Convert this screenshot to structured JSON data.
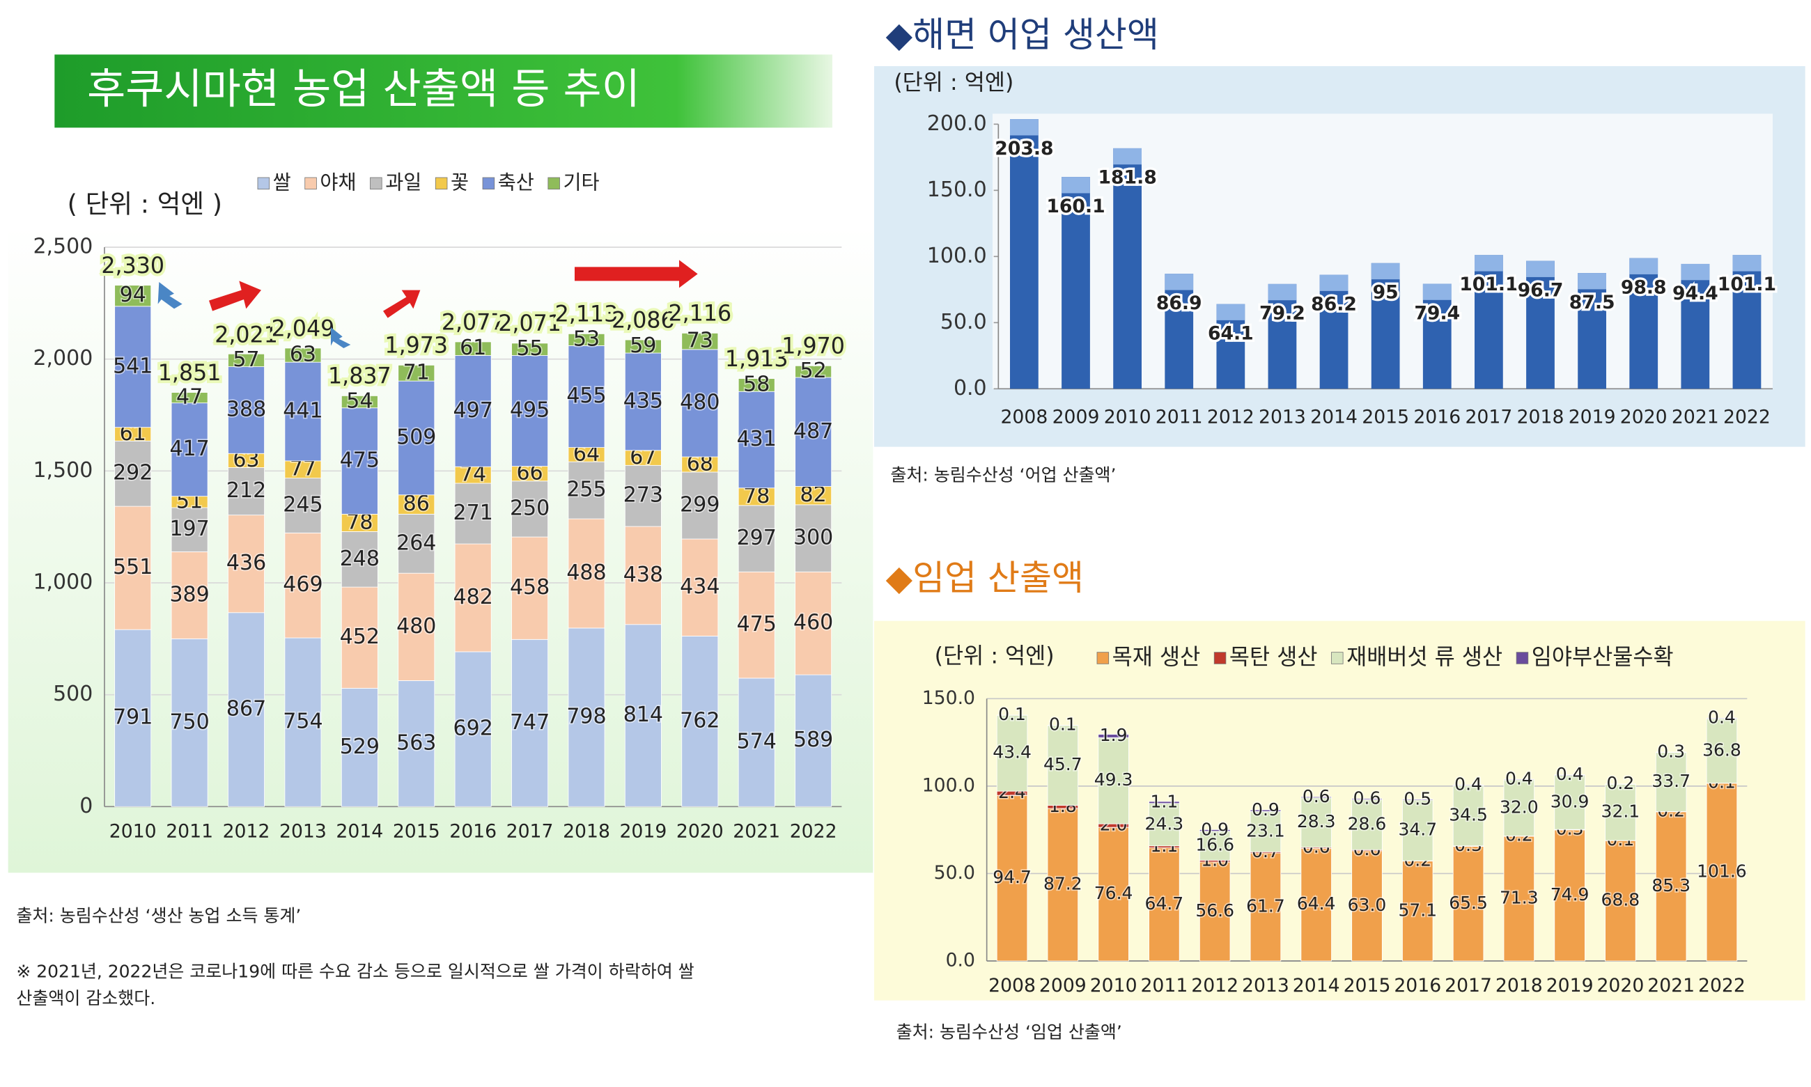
{
  "chart_data": [
    {
      "type": "stacked_bar",
      "title": "후쿠시마현 농업 산출액 등 추이",
      "unit": "( 단위 : 억엔 )",
      "categories": [
        "2010",
        "2011",
        "2012",
        "2013",
        "2014",
        "2015",
        "2016",
        "2017",
        "2018",
        "2019",
        "2020",
        "2021",
        "2022"
      ],
      "series": [
        {
          "name": "쌀",
          "color": "#b4c7e7",
          "values": [
            791,
            750,
            867,
            754,
            529,
            563,
            692,
            747,
            798,
            814,
            762,
            574,
            589
          ]
        },
        {
          "name": "야채",
          "color": "#f8cbad",
          "values": [
            551,
            389,
            436,
            469,
            452,
            480,
            482,
            458,
            488,
            438,
            434,
            475,
            460
          ]
        },
        {
          "name": "과일",
          "color": "#bfbfbf",
          "values": [
            292,
            197,
            212,
            245,
            248,
            264,
            271,
            250,
            255,
            273,
            299,
            297,
            300
          ]
        },
        {
          "name": "꽃",
          "color": "#f2c94c",
          "values": [
            61,
            51,
            63,
            77,
            78,
            86,
            74,
            66,
            64,
            67,
            68,
            78,
            82
          ]
        },
        {
          "name": "축산",
          "color": "#7893d8",
          "values": [
            541,
            417,
            388,
            441,
            475,
            509,
            497,
            495,
            455,
            435,
            480,
            431,
            487
          ]
        },
        {
          "name": "기타",
          "color": "#8fbc5a",
          "values": [
            94,
            47,
            57,
            63,
            54,
            71,
            61,
            55,
            53,
            59,
            73,
            58,
            52
          ]
        }
      ],
      "totals": [
        2330,
        1851,
        2021,
        2049,
        1837,
        1973,
        2077,
        2071,
        2113,
        2086,
        2116,
        1913,
        1970
      ],
      "totals_labels": [
        "2,330",
        "1,851",
        "2,021",
        "2,049",
        "1,837",
        "1,973",
        "2,077",
        "2,071",
        "2,113",
        "2,086",
        "2,116",
        "1,913",
        "1,970"
      ],
      "ylim": [
        0,
        2500
      ],
      "yticks": [
        0,
        500,
        {
          "value": 1000,
          "label": "1,000"
        },
        {
          "value": 1500,
          "label": "1,500"
        },
        {
          "value": 2000,
          "label": "2,000"
        },
        {
          "value": 2500,
          "label": "2,500"
        }
      ],
      "grid": true,
      "source": "출처: 농림수산성 ‘생산 농업 소득 통계’",
      "note": [
        "※ 2021년, 2022년은 코로나19에 따른 수요 감소 등으로 일시적으로 쌀 가격이 하락하여 쌀",
        "산출액이 감소했다."
      ]
    },
    {
      "type": "bar",
      "title": "◆해면 어업 생산액",
      "unit": "(단위 : 억엔)",
      "categories": [
        "2008",
        "2009",
        "2010",
        "2011",
        "2012",
        "2013",
        "2014",
        "2015",
        "2016",
        "2017",
        "2018",
        "2019",
        "2020",
        "2021",
        "2022"
      ],
      "values": [
        203.8,
        160.1,
        181.8,
        86.9,
        64.1,
        79.2,
        86.2,
        95,
        79.4,
        101.1,
        96.7,
        87.5,
        98.8,
        94.4,
        101.1
      ],
      "color": "#2f62b0",
      "ylim": [
        0,
        200
      ],
      "yticks": [
        {
          "value": 0,
          "label": "0.0"
        },
        {
          "value": 50,
          "label": "50.0"
        },
        {
          "value": 100,
          "label": "100.0"
        },
        {
          "value": 150,
          "label": "150.0"
        },
        {
          "value": 200,
          "label": "200.0"
        }
      ],
      "grid": false,
      "source": "출처: 농림수산성 ‘어업 산출액’"
    },
    {
      "type": "stacked_bar",
      "title": "◆임업 산출액",
      "unit": "(단위 : 억엔)",
      "categories": [
        "2008",
        "2009",
        "2010",
        "2011",
        "2012",
        "2013",
        "2014",
        "2015",
        "2016",
        "2017",
        "2018",
        "2019",
        "2020",
        "2021",
        "2022"
      ],
      "series": [
        {
          "name": "목재 생산",
          "color": "#f0a04b",
          "values": [
            94.7,
            87.2,
            76.4,
            64.7,
            56.6,
            61.7,
            64.4,
            63.0,
            57.1,
            65.5,
            71.3,
            74.9,
            68.8,
            85.3,
            101.6
          ],
          "value_labels": [
            "94.7",
            "87.2",
            "76.4",
            "64.7",
            "56.6",
            "61.7",
            "64.4",
            "63.0",
            "57.1",
            "65.5",
            "71.3",
            "74.9",
            "68.8",
            "85.3",
            "101.6"
          ]
        },
        {
          "name": "목탄 생산",
          "color": "#c0392b",
          "values": [
            2.4,
            1.8,
            2.0,
            1.1,
            1.0,
            0.7,
            0.6,
            0.6,
            0.2,
            0.3,
            0.2,
            0.3,
            0.1,
            0.2,
            0.1
          ],
          "value_labels": [
            "2.4",
            "1.8",
            "2.0",
            "1.1",
            "1.0",
            "0.7",
            "0.6",
            "0.6",
            "0.2",
            "0.3",
            "0.2",
            "0.3",
            "0.1",
            "0.2",
            "0.1"
          ]
        },
        {
          "name": "재배버섯 류 생산",
          "color": "#d8e6bf",
          "values": [
            43.4,
            45.7,
            49.3,
            24.3,
            16.6,
            23.1,
            28.3,
            28.6,
            34.7,
            34.5,
            32.0,
            30.9,
            32.1,
            33.7,
            36.8
          ],
          "value_labels": [
            "43.4",
            "45.7",
            "49.3",
            "24.3",
            "16.6",
            "23.1",
            "28.3",
            "28.6",
            "34.7",
            "34.5",
            "32.0",
            "30.9",
            "32.1",
            "33.7",
            "36.8"
          ]
        },
        {
          "name": "임야부산물수확",
          "color": "#6a4c9c",
          "values": [
            0.1,
            0.1,
            1.9,
            1.1,
            0.9,
            0.9,
            0.6,
            0.6,
            0.5,
            0.4,
            0.4,
            0.4,
            0.2,
            0.3,
            0.4
          ],
          "value_labels": [
            "0.1",
            "0.1",
            "1.9",
            "1.1",
            "0.9",
            "0.9",
            "0.6",
            "0.6",
            "0.5",
            "0.4",
            "0.4",
            "0.4",
            "0.2",
            "0.3",
            "0.4"
          ]
        }
      ],
      "ylim": [
        0,
        150
      ],
      "yticks": [
        {
          "value": 0,
          "label": "0.0"
        },
        {
          "value": 50,
          "label": "50.0"
        },
        {
          "value": 100,
          "label": "100.0"
        },
        {
          "value": 150,
          "label": "150.0"
        }
      ],
      "grid": true,
      "source": "출처: 농림수산성 ‘임업 산출액’"
    }
  ]
}
